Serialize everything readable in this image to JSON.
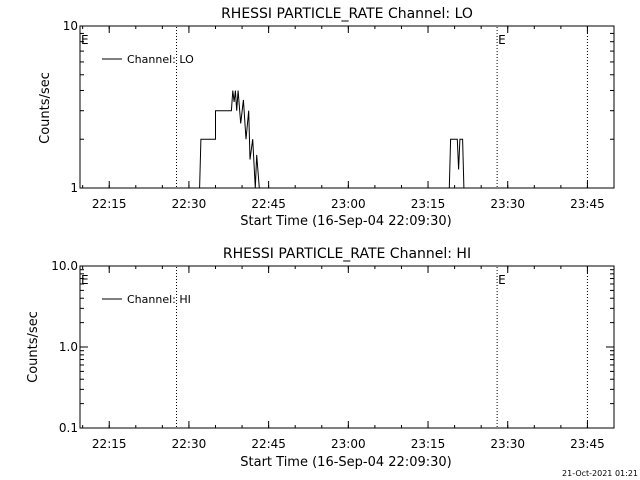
{
  "chart_data": [
    {
      "type": "line",
      "title": "RHESSI PARTICLE_RATE Channel: LO",
      "xlabel": "Start Time (16-Sep-04 22:09:30)",
      "ylabel": "Counts/sec",
      "yscale": "log",
      "ylim": [
        1,
        10
      ],
      "yticks": [
        1,
        10
      ],
      "ytick_labels": [
        "1",
        "10"
      ],
      "xlim": [
        "22:09:30",
        "23:50:00"
      ],
      "xticks": [
        "22:15",
        "22:30",
        "22:45",
        "23:00",
        "23:15",
        "23:30",
        "23:45"
      ],
      "legend": {
        "placement": "top-left",
        "entries": [
          "Channel: LO"
        ]
      },
      "marker_label": "E",
      "vertical_markers": [
        "22:27:40",
        "23:28:00",
        "23:45:00"
      ],
      "e_labels_at": [
        "22:09:30",
        "23:28:00"
      ],
      "series": [
        {
          "name": "Channel: LO",
          "points": [
            [
              "22:32:00",
              1
            ],
            [
              "22:32:15",
              2
            ],
            [
              "22:35:00",
              2
            ],
            [
              "22:35:00",
              3
            ],
            [
              "22:38:00",
              3
            ],
            [
              "22:38:15",
              4
            ],
            [
              "22:38:30",
              3.4
            ],
            [
              "22:38:45",
              4
            ],
            [
              "22:39:00",
              3
            ],
            [
              "22:39:15",
              4
            ],
            [
              "22:39:45",
              2.5
            ],
            [
              "22:40:15",
              3.5
            ],
            [
              "22:40:45",
              2
            ],
            [
              "22:41:15",
              3
            ],
            [
              "22:41:30",
              1.5
            ],
            [
              "22:42:00",
              2
            ],
            [
              "22:42:30",
              1
            ],
            [
              "22:42:45",
              1.6
            ],
            [
              "22:43:15",
              1
            ],
            [
              "23:19:00",
              1
            ],
            [
              "23:19:15",
              2
            ],
            [
              "23:20:30",
              2
            ],
            [
              "23:20:45",
              1.3
            ],
            [
              "23:21:00",
              2
            ],
            [
              "23:21:30",
              2
            ],
            [
              "23:21:45",
              1
            ]
          ]
        }
      ]
    },
    {
      "type": "line",
      "title": "RHESSI PARTICLE_RATE Channel: HI",
      "xlabel": "Start Time (16-Sep-04 22:09:30)",
      "ylabel": "Counts/sec",
      "yscale": "log",
      "ylim": [
        0.1,
        10
      ],
      "yticks": [
        0.1,
        1,
        10
      ],
      "ytick_labels": [
        "0.1",
        "1.0",
        "10.0"
      ],
      "xlim": [
        "22:09:30",
        "23:50:00"
      ],
      "xticks": [
        "22:15",
        "22:30",
        "22:45",
        "23:00",
        "23:15",
        "23:30",
        "23:45"
      ],
      "legend": {
        "placement": "top-left",
        "entries": [
          "Channel: HI"
        ]
      },
      "marker_label": "E",
      "vertical_markers": [
        "22:27:40",
        "23:28:00",
        "23:45:00"
      ],
      "e_labels_at": [
        "22:09:30",
        "23:28:00"
      ],
      "series": [
        {
          "name": "Channel: HI",
          "points": []
        }
      ]
    }
  ],
  "footer": {
    "timestamp": "21-Oct-2021 01:21"
  }
}
